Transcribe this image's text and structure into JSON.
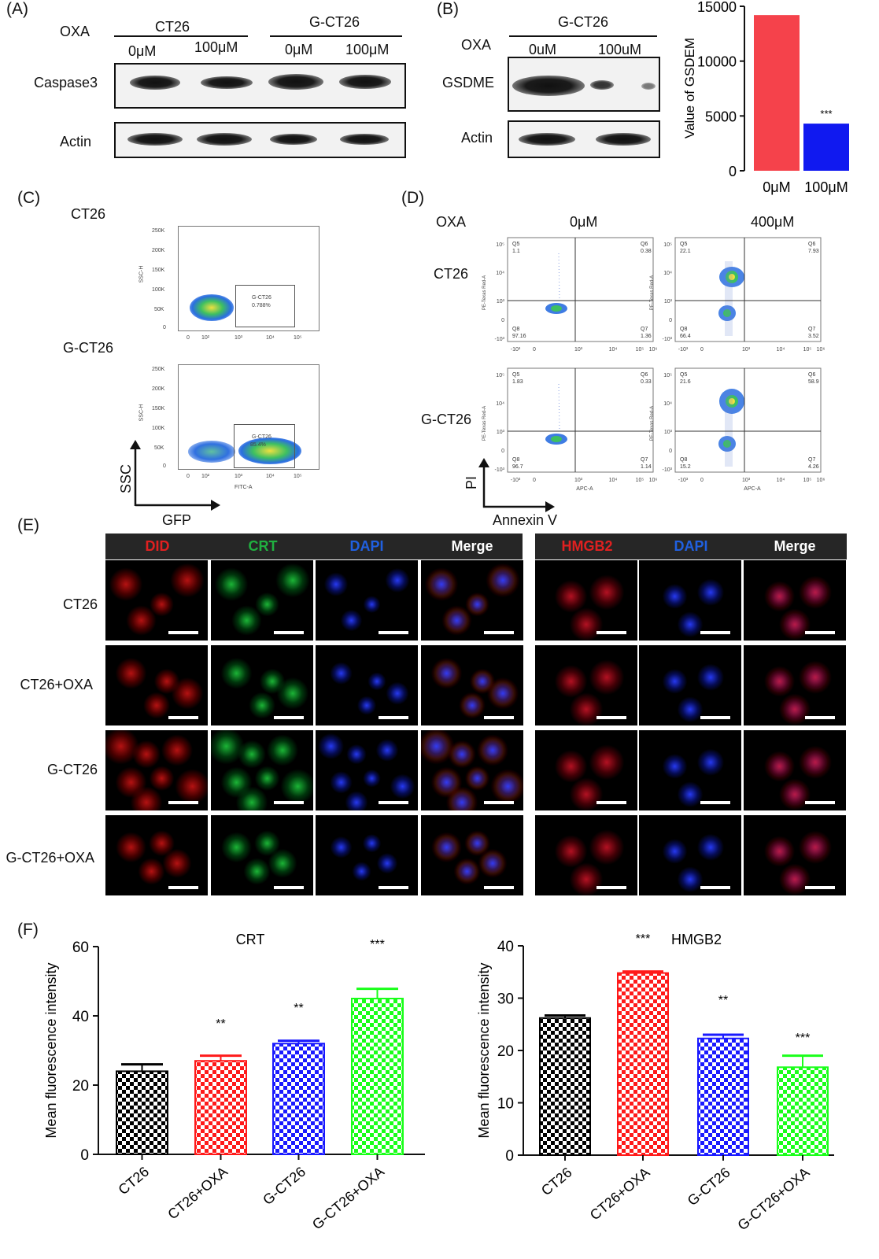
{
  "panel_a": {
    "label": "(A)",
    "oxa_label": "OXA",
    "group1": "CT26",
    "group2": "G-CT26",
    "doses": [
      "0μM",
      "100μM",
      "0μM",
      "100μM"
    ],
    "rows": [
      "Caspase3",
      "Actin"
    ]
  },
  "panel_b": {
    "label": "(B)",
    "group": "G-CT26",
    "oxa_label": "OXA",
    "doses": [
      "0uM",
      "100uM"
    ],
    "rows": [
      "GSDME",
      "Actin"
    ]
  },
  "panel_b_chart": {
    "chart_data": {
      "type": "bar",
      "categories": [
        "0μM",
        "100μM"
      ],
      "values": [
        14200,
        4300
      ],
      "colors": [
        "#f5424b",
        "#1019f0"
      ],
      "ylabel": "Value of GSDEM",
      "ylim": [
        0,
        15000
      ],
      "yticks": [
        "0",
        "5000",
        "10000",
        "15000"
      ],
      "annotations": [
        "",
        "***"
      ]
    }
  },
  "panel_c": {
    "label": "(C)",
    "rows": [
      "CT26",
      "G-CT26"
    ],
    "y_ticks": [
      "250K",
      "200K",
      "150K",
      "100K",
      "50K",
      "0"
    ],
    "x_ticks": [
      "0",
      "10²",
      "10³",
      "10⁴",
      "10⁵"
    ],
    "y_axis_small": "SSC-H",
    "x_axis_small": "FITC-A",
    "gates": [
      {
        "name": "G-CT26",
        "value": "0.788%"
      },
      {
        "name": "G-CT26",
        "value": "85.4%"
      }
    ],
    "axis_y": "SSC",
    "axis_x": "GFP"
  },
  "panel_d": {
    "label": "(D)",
    "oxa_label": "OXA",
    "doses": [
      "0μM",
      "400μM"
    ],
    "rows": [
      "CT26",
      "G-CT26"
    ],
    "y_ticks": [
      "10⁵",
      "10⁴",
      "10³",
      "0",
      "-10³"
    ],
    "x_ticks": [
      "-10³",
      "0",
      "10³",
      "10⁴",
      "10⁵",
      "10⁶"
    ],
    "y_axis_small": "PE-Texas Red-A",
    "x_axis_small": "APC-A",
    "quads": [
      {
        "q5": "1.1",
        "q6": "0.38",
        "q8": "97.16",
        "q7": "1.36"
      },
      {
        "q5": "22.1",
        "q6": "7.93",
        "q8": "66.4",
        "q7": "3.52"
      },
      {
        "q5": "1.83",
        "q6": "0.33",
        "q8": "96.7",
        "q7": "1.14"
      },
      {
        "q5": "21.6",
        "q6": "58.9",
        "q8": "15.2",
        "q7": "4.26"
      }
    ],
    "q_names": [
      "Q5",
      "Q6",
      "Q8",
      "Q7"
    ],
    "axis_y": "PI",
    "axis_x": "Annexin V"
  },
  "panel_e": {
    "label": "(E)",
    "left_headers": [
      "DID",
      "CRT",
      "DAPI",
      "Merge"
    ],
    "right_headers": [
      "HMGB2",
      "DAPI",
      "Merge"
    ],
    "header_colors": [
      "#e02020",
      "#20b040",
      "#2060e0",
      "#ffffff"
    ],
    "rows": [
      "CT26",
      "CT26+OXA",
      "G-CT26",
      "G-CT26+OXA"
    ]
  },
  "panel_f": {
    "label": "(F)",
    "crt_chart": {
      "type": "bar",
      "title": "CRT",
      "ylabel": "Mean fluorescence intensity",
      "categories": [
        "CT26",
        "CT26+OXA",
        "G-CT26",
        "G-CT26+OXA"
      ],
      "values": [
        24,
        27,
        32,
        45
      ],
      "errors": [
        2,
        1.5,
        0.8,
        2.8
      ],
      "colors": [
        "#000000",
        "#ff1a1a",
        "#1a1aff",
        "#1aff1a"
      ],
      "ylim": [
        0,
        60
      ],
      "yticks": [
        "0",
        "20",
        "40",
        "60"
      ],
      "annotations": [
        "",
        "**",
        "**",
        "***"
      ]
    },
    "hmgb2_chart": {
      "type": "bar",
      "title": "HMGB2",
      "ylabel": "Mean fluorescence intensity",
      "categories": [
        "CT26",
        "CT26+OXA",
        "G-CT26",
        "G-CT26+OXA"
      ],
      "values": [
        26.2,
        34.8,
        22.3,
        16.8
      ],
      "errors": [
        0.5,
        0.3,
        0.7,
        2.2
      ],
      "colors": [
        "#000000",
        "#ff1a1a",
        "#1a1aff",
        "#1aff1a"
      ],
      "ylim": [
        0,
        40
      ],
      "yticks": [
        "0",
        "10",
        "20",
        "30",
        "40"
      ],
      "annotations": [
        "",
        "***",
        "**",
        "***"
      ]
    }
  }
}
